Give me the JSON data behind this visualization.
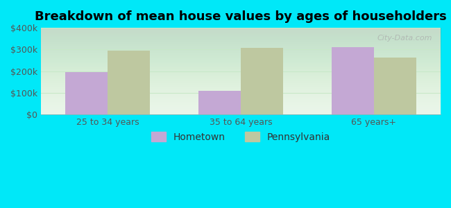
{
  "title": "Breakdown of mean house values by ages of householders",
  "categories": [
    "25 to 34 years",
    "35 to 64 years",
    "65 years+"
  ],
  "hometown_values": [
    195000,
    110000,
    310000
  ],
  "pennsylvania_values": [
    293000,
    308000,
    263000
  ],
  "hometown_color": "#c4a8d4",
  "pennsylvania_color": "#bec8a0",
  "background_outer": "#00e8f8",
  "background_inner_top": "#e8f5e8",
  "background_inner_bottom": "#d8f0e0",
  "ylim": [
    0,
    400000
  ],
  "yticks": [
    0,
    100000,
    200000,
    300000,
    400000
  ],
  "ytick_labels": [
    "$0",
    "$100k",
    "$200k",
    "$300k",
    "$400k"
  ],
  "bar_width": 0.32,
  "legend_labels": [
    "Hometown",
    "Pennsylvania"
  ],
  "title_fontsize": 13,
  "tick_fontsize": 9,
  "legend_fontsize": 10,
  "grid_color": "#c8e8c8",
  "watermark_text": "City-Data.com"
}
